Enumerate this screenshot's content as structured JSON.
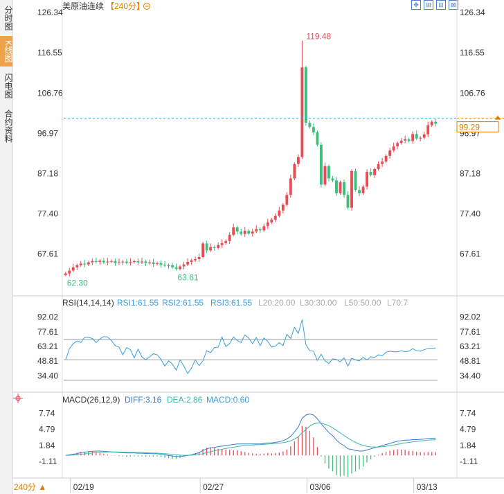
{
  "tabs": [
    {
      "label": "分时图",
      "active": false
    },
    {
      "label": "K线图",
      "active": true
    },
    {
      "label": "闪电图",
      "active": false
    },
    {
      "label": "合约资料",
      "active": false
    }
  ],
  "header": {
    "title": "美原油连续",
    "period_tag": "【240分】",
    "toggle_icon": "minus-circle-icon"
  },
  "toolbar": {
    "icons": [
      "move-icon",
      "zoom-icon",
      "ruler-icon",
      "grid-icon"
    ]
  },
  "period_select": "240分 ▲",
  "chart_data": [
    {
      "type": "candlestick",
      "title": "美原油连续【240分】",
      "yticks": [
        "126.34",
        "116.55",
        "106.76",
        "96.97",
        "87.18",
        "77.40",
        "67.61"
      ],
      "ylim": [
        57.8,
        126.34
      ],
      "xticks": [
        "02/19",
        "02/27",
        "03/06",
        "03/13"
      ],
      "last_price": "99.29",
      "annotations": {
        "high": "119.48",
        "low_left": "62.30",
        "low_mid": "63.61"
      },
      "up_color": "#e84c55",
      "down_color": "#3bbf7a",
      "closes": [
        62.9,
        63.6,
        64.4,
        64.9,
        65.3,
        65.1,
        65.6,
        65.9,
        65.7,
        66.0,
        65.6,
        65.8,
        65.9,
        65.4,
        65.6,
        65.8,
        65.5,
        65.7,
        65.9,
        65.6,
        65.8,
        65.4,
        65.6,
        65.2,
        65.4,
        65.0,
        64.8,
        64.9,
        64.4,
        64.0,
        64.6,
        65.1,
        65.7,
        66.1,
        66.4,
        66.9,
        70.2,
        68.5,
        69.3,
        69.1,
        69.8,
        70.3,
        70.8,
        72.3,
        74.1,
        73.1,
        72.5,
        73.3,
        72.6,
        73.1,
        73.7,
        73.4,
        74.4,
        75.3,
        76.0,
        76.9,
        78.2,
        79.6,
        82.0,
        86.0,
        89.5,
        91.2,
        113.0,
        99.5,
        98.5,
        97.2,
        94.2,
        84.5,
        89.0,
        86.0,
        85.5,
        82.4,
        85.1,
        82.0,
        78.9,
        87.8,
        83.2,
        82.4,
        84.0,
        87.6,
        86.8,
        88.3,
        89.5,
        90.1,
        91.5,
        92.8,
        93.8,
        94.6,
        95.2,
        95.5,
        95.1,
        96.8,
        95.7,
        95.9,
        96.7,
        98.9,
        99.8,
        99.3
      ]
    },
    {
      "type": "line",
      "title": "RSI(14,14,14)",
      "series": [
        {
          "name": "RSI1:61.55",
          "color": "#3a9fdc"
        },
        {
          "name": "RSI2:61.55",
          "color": "#3a9fdc"
        },
        {
          "name": "RSI3:61.55",
          "color": "#3a9fdc"
        }
      ],
      "legend_extra": [
        "L20:20.00",
        "L30:30.00",
        "L50:50.00",
        "L70:7"
      ],
      "yticks": [
        "92.02",
        "77.61",
        "63.21",
        "48.81",
        "34.40"
      ],
      "ylim": [
        27.2,
        99.2
      ],
      "reference_lines": [
        20,
        30,
        50,
        70
      ],
      "values": [
        50.0,
        61.0,
        66.0,
        68.5,
        67.0,
        72.0,
        72.0,
        71.0,
        67.0,
        70.5,
        73.0,
        72.5,
        69.0,
        64.0,
        62.5,
        55.0,
        62.0,
        60.0,
        52.0,
        60.5,
        53.0,
        50.0,
        53.0,
        56.0,
        55.0,
        50.5,
        44.0,
        49.0,
        46.0,
        40.0,
        50.0,
        44.0,
        36.5,
        42.0,
        50.0,
        44.5,
        49.0,
        59.0,
        57.0,
        62.0,
        62.5,
        72.5,
        63.0,
        66.0,
        72.5,
        69.0,
        67.0,
        74.5,
        71.5,
        66.0,
        72.0,
        64.0,
        71.5,
        68.0,
        62.5,
        63.5,
        67.0,
        64.0,
        75.0,
        71.0,
        82.0,
        76.0,
        89.5,
        65.0,
        59.0,
        58.5,
        49.5,
        55.5,
        49.0,
        46.5,
        51.0,
        50.5,
        48.0,
        52.0,
        44.0,
        51.5,
        50.0,
        49.0,
        52.5,
        50.0,
        53.0,
        52.5,
        55.0,
        54.0,
        57.5,
        58.5,
        58.0,
        58.0,
        59.0,
        58.0,
        58.5,
        61.0,
        59.0,
        58.5,
        60.0,
        61.0,
        61.5,
        61.55
      ]
    },
    {
      "type": "macd",
      "title": "MACD(26,12,9)",
      "series": [
        {
          "name": "DIFF:3.16",
          "color": "#3a7bd5"
        },
        {
          "name": "DEA:2.86",
          "color": "#3fb8a6"
        },
        {
          "name": "MACD:0.60",
          "color": "#3a9fdc"
        }
      ],
      "yticks": [
        "7.74",
        "4.79",
        "1.84",
        "-1.11"
      ],
      "ylim": [
        -3.9,
        8.8
      ],
      "diff": [
        0.0,
        0.1,
        0.2,
        0.35,
        0.5,
        0.6,
        0.7,
        0.75,
        0.8,
        0.8,
        0.75,
        0.7,
        0.65,
        0.6,
        0.55,
        0.5,
        0.45,
        0.45,
        0.45,
        0.4,
        0.4,
        0.35,
        0.35,
        0.3,
        0.3,
        0.2,
        0.1,
        0.0,
        -0.1,
        -0.2,
        -0.2,
        -0.1,
        0.0,
        0.1,
        0.3,
        0.5,
        0.9,
        1.2,
        1.4,
        1.5,
        1.6,
        1.7,
        1.8,
        1.9,
        2.0,
        2.1,
        2.1,
        2.1,
        2.1,
        2.1,
        2.1,
        2.1,
        2.2,
        2.3,
        2.3,
        2.4,
        2.5,
        2.7,
        3.0,
        3.5,
        4.3,
        5.2,
        6.8,
        7.4,
        7.6,
        7.4,
        6.7,
        5.8,
        5.0,
        4.2,
        3.6,
        2.8,
        2.2,
        1.8,
        1.2,
        1.1,
        0.9,
        0.8,
        0.8,
        1.0,
        1.2,
        1.4,
        1.6,
        1.8,
        2.0,
        2.2,
        2.4,
        2.6,
        2.7,
        2.8,
        2.8,
        2.9,
        2.9,
        2.95,
        3.0,
        3.1,
        3.15,
        3.16
      ],
      "dea": [
        0.0,
        0.02,
        0.06,
        0.12,
        0.2,
        0.28,
        0.36,
        0.44,
        0.5,
        0.56,
        0.6,
        0.62,
        0.63,
        0.63,
        0.62,
        0.6,
        0.58,
        0.56,
        0.54,
        0.52,
        0.5,
        0.48,
        0.46,
        0.43,
        0.41,
        0.37,
        0.32,
        0.26,
        0.19,
        0.11,
        0.05,
        0.02,
        0.02,
        0.04,
        0.09,
        0.17,
        0.32,
        0.5,
        0.68,
        0.84,
        0.99,
        1.13,
        1.26,
        1.39,
        1.51,
        1.63,
        1.72,
        1.8,
        1.86,
        1.91,
        1.95,
        1.98,
        2.03,
        2.08,
        2.13,
        2.18,
        2.24,
        2.33,
        2.46,
        2.67,
        3.0,
        3.44,
        4.11,
        4.77,
        5.34,
        5.75,
        5.94,
        5.91,
        5.73,
        5.42,
        5.06,
        4.6,
        4.12,
        3.66,
        3.17,
        2.76,
        2.39,
        2.07,
        1.82,
        1.65,
        1.56,
        1.53,
        1.54,
        1.59,
        1.67,
        1.78,
        1.9,
        2.04,
        2.17,
        2.29,
        2.39,
        2.49,
        2.57,
        2.65,
        2.72,
        2.79,
        2.84,
        2.86
      ]
    }
  ]
}
